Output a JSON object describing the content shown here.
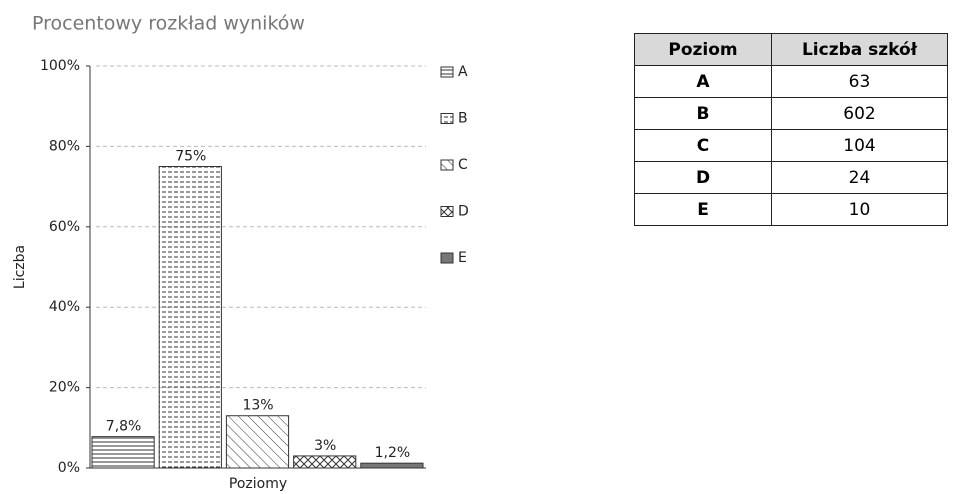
{
  "chart_data": {
    "type": "bar",
    "title": "Procentowy rozkład wyników",
    "x_label": "Poziomy",
    "y_label": "Liczba",
    "categories": [
      "A",
      "B",
      "C",
      "D",
      "E"
    ],
    "values": [
      7.8,
      75,
      13,
      3,
      1.2
    ],
    "value_labels": [
      "7,8%",
      "75%",
      "13%",
      "3%",
      "1,2%"
    ],
    "ylim": [
      0,
      100
    ],
    "yticks": [
      {
        "value": 0,
        "label": "0%"
      },
      {
        "value": 20,
        "label": "20%"
      },
      {
        "value": 40,
        "label": "40%"
      },
      {
        "value": 60,
        "label": "60%"
      },
      {
        "value": 80,
        "label": "80%"
      },
      {
        "value": 100,
        "label": "100%"
      }
    ],
    "grid": true
  },
  "table": {
    "headers": [
      "Poziom",
      "Liczba szkół"
    ],
    "rows": [
      [
        "A",
        63
      ],
      [
        "B",
        602
      ],
      [
        "C",
        104
      ],
      [
        "D",
        24
      ],
      [
        "E",
        10
      ]
    ]
  }
}
